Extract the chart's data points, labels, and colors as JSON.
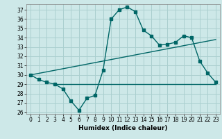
{
  "title": "",
  "xlabel": "Humidex (Indice chaleur)",
  "bg_color": "#cde8e8",
  "grid_color": "#aacfcf",
  "line_color": "#006666",
  "xlim": [
    -0.5,
    23.5
  ],
  "ylim": [
    25.8,
    37.6
  ],
  "yticks": [
    26,
    27,
    28,
    29,
    30,
    31,
    32,
    33,
    34,
    35,
    36,
    37
  ],
  "xticks": [
    0,
    1,
    2,
    3,
    4,
    5,
    6,
    7,
    8,
    9,
    10,
    11,
    12,
    13,
    14,
    15,
    16,
    17,
    18,
    19,
    20,
    21,
    22,
    23
  ],
  "curve1_x": [
    0,
    1,
    2,
    3,
    4,
    5,
    6,
    7,
    8,
    9,
    10,
    11,
    12,
    13,
    14,
    15,
    16,
    17,
    18,
    19,
    20,
    21,
    22,
    23
  ],
  "curve1_y": [
    30.0,
    29.5,
    29.2,
    29.0,
    28.5,
    27.2,
    26.2,
    27.5,
    27.8,
    30.5,
    36.0,
    37.0,
    37.3,
    36.8,
    34.8,
    34.2,
    33.2,
    33.3,
    33.5,
    34.2,
    34.0,
    31.5,
    30.2,
    29.2
  ],
  "curve2_x": [
    0,
    23
  ],
  "curve2_y": [
    30.0,
    33.8
  ],
  "curve3_x": [
    3,
    23
  ],
  "curve3_y": [
    29.0,
    29.0
  ],
  "tick_fontsize": 5.5,
  "label_fontsize": 6.5
}
